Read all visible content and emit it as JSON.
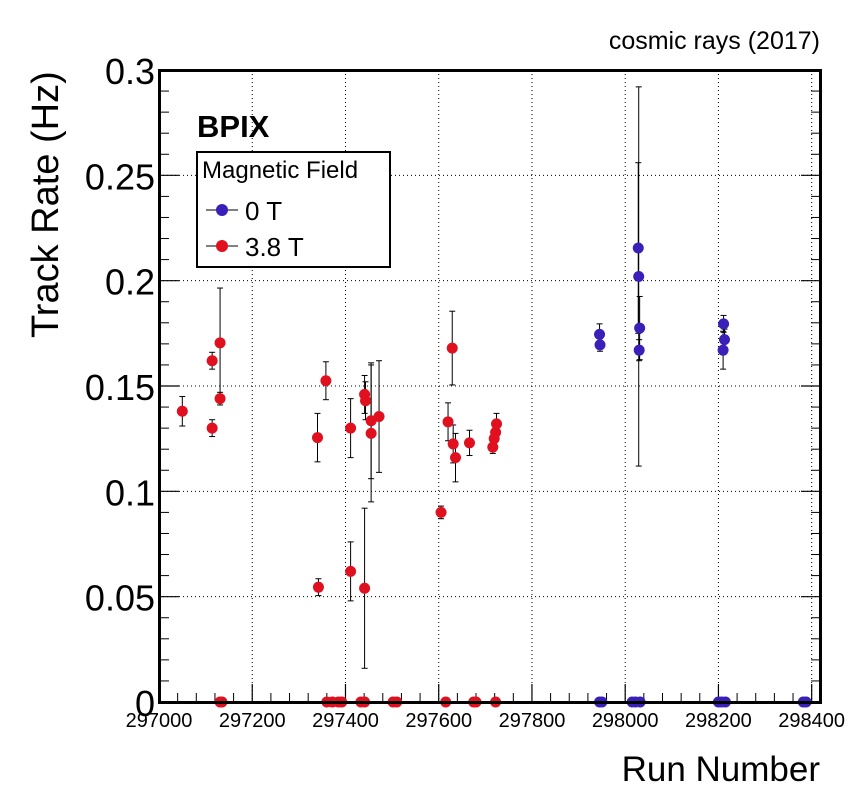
{
  "chart_data": {
    "type": "scatter",
    "title": "cosmic rays (2017)",
    "annotation": "BPIX",
    "xlabel": "Run Number",
    "ylabel": "Track Rate (Hz)",
    "xlim": [
      297000,
      298420
    ],
    "ylim": [
      0,
      0.3
    ],
    "x_ticks": [
      297000,
      297200,
      297400,
      297600,
      297800,
      298000,
      298200,
      298400
    ],
    "y_ticks": [
      0,
      0.05,
      0.1,
      0.15,
      0.2,
      0.25,
      0.3
    ],
    "y_tick_labels": [
      "0",
      "0.05",
      "0.1",
      "0.15",
      "0.2",
      "0.25",
      "0.3"
    ],
    "grid": true,
    "legend": {
      "title": "Magnetic Field",
      "placement": "top-left"
    },
    "series": [
      {
        "name": "0 T",
        "color": "#3a1fb8",
        "points": [
          {
            "x": 297945,
            "y": 0.1745,
            "err": 0.005
          },
          {
            "x": 297946,
            "y": 0.1695,
            "err": 0.003
          },
          {
            "x": 298028,
            "y": 0.2155,
            "err": 0.0405
          },
          {
            "x": 298029,
            "y": 0.202,
            "err": 0.09
          },
          {
            "x": 298031,
            "y": 0.1775,
            "err": 0.015
          },
          {
            "x": 298030,
            "y": 0.167,
            "err": 0.005
          },
          {
            "x": 298211,
            "y": 0.1795,
            "err": 0.004
          },
          {
            "x": 298213,
            "y": 0.172,
            "err": 0.005
          },
          {
            "x": 298210,
            "y": 0.167,
            "err": 0.009
          },
          {
            "x": 297945,
            "y": 0,
            "err": 0
          },
          {
            "x": 297950,
            "y": 0,
            "err": 0
          },
          {
            "x": 298015,
            "y": 0,
            "err": 0
          },
          {
            "x": 298022,
            "y": 0,
            "err": 0
          },
          {
            "x": 298032,
            "y": 0,
            "err": 0
          },
          {
            "x": 298200,
            "y": 0,
            "err": 0
          },
          {
            "x": 298207,
            "y": 0,
            "err": 0
          },
          {
            "x": 298215,
            "y": 0,
            "err": 0
          },
          {
            "x": 298382,
            "y": 0,
            "err": 0
          },
          {
            "x": 298388,
            "y": 0,
            "err": 0
          }
        ]
      },
      {
        "name": "3.8 T",
        "color": "#e0101e",
        "points": [
          {
            "x": 297050,
            "y": 0.138,
            "err": 0.007
          },
          {
            "x": 297114,
            "y": 0.162,
            "err": 0.004
          },
          {
            "x": 297114,
            "y": 0.13,
            "err": 0.004
          },
          {
            "x": 297131,
            "y": 0.1705,
            "err": 0.026
          },
          {
            "x": 297131,
            "y": 0.144,
            "err": 0.003
          },
          {
            "x": 297340,
            "y": 0.1255,
            "err": 0.0115
          },
          {
            "x": 297358,
            "y": 0.1525,
            "err": 0.009
          },
          {
            "x": 297342,
            "y": 0.0545,
            "err": 0.004
          },
          {
            "x": 297411,
            "y": 0.13,
            "err": 0.014
          },
          {
            "x": 297411,
            "y": 0.062,
            "err": 0.014
          },
          {
            "x": 297441,
            "y": 0.146,
            "err": 0.009
          },
          {
            "x": 297443,
            "y": 0.143,
            "err": 0.009
          },
          {
            "x": 297441,
            "y": 0.054,
            "err": 0.038
          },
          {
            "x": 297455,
            "y": 0.1335,
            "err": 0.0275
          },
          {
            "x": 297455,
            "y": 0.1275,
            "err": 0.0325
          },
          {
            "x": 297472,
            "y": 0.1355,
            "err": 0.0265
          },
          {
            "x": 297605,
            "y": 0.09,
            "err": 0.003
          },
          {
            "x": 297620,
            "y": 0.133,
            "err": 0.009
          },
          {
            "x": 297629,
            "y": 0.168,
            "err": 0.0175
          },
          {
            "x": 297631,
            "y": 0.1225,
            "err": 0.009
          },
          {
            "x": 297636,
            "y": 0.116,
            "err": 0.0115
          },
          {
            "x": 297666,
            "y": 0.123,
            "err": 0.006
          },
          {
            "x": 297716,
            "y": 0.121,
            "err": 0.003
          },
          {
            "x": 297719,
            "y": 0.125,
            "err": 0.004
          },
          {
            "x": 297722,
            "y": 0.128,
            "err": 0.004
          },
          {
            "x": 297724,
            "y": 0.132,
            "err": 0.005
          },
          {
            "x": 297131,
            "y": 0,
            "err": 0
          },
          {
            "x": 297135,
            "y": 0,
            "err": 0
          },
          {
            "x": 297360,
            "y": 0,
            "err": 0
          },
          {
            "x": 297372,
            "y": 0,
            "err": 0
          },
          {
            "x": 297385,
            "y": 0,
            "err": 0
          },
          {
            "x": 297392,
            "y": 0,
            "err": 0
          },
          {
            "x": 297433,
            "y": 0,
            "err": 0
          },
          {
            "x": 297441,
            "y": 0,
            "err": 0
          },
          {
            "x": 297502,
            "y": 0,
            "err": 0
          },
          {
            "x": 297510,
            "y": 0,
            "err": 0
          },
          {
            "x": 297615,
            "y": 0,
            "err": 0
          },
          {
            "x": 297675,
            "y": 0,
            "err": 0
          },
          {
            "x": 297680,
            "y": 0,
            "err": 0
          },
          {
            "x": 297722,
            "y": 0,
            "err": 0
          }
        ]
      }
    ]
  }
}
